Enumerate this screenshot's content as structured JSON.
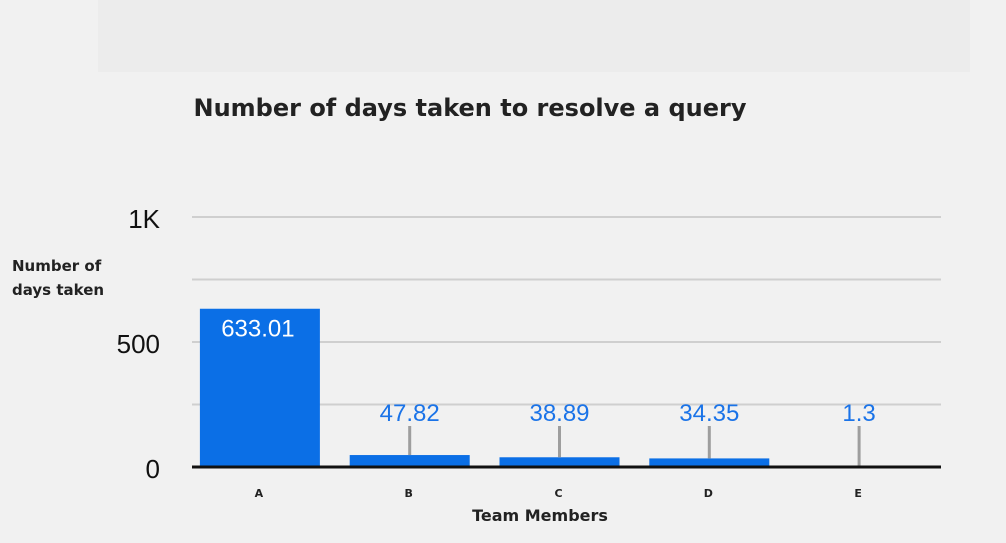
{
  "chart_data": {
    "type": "bar",
    "title": "Number of days taken to resolve a query",
    "xlabel": "Team Members",
    "ylabel": "Number of days taken",
    "categories": [
      "A",
      "B",
      "C",
      "D",
      "E"
    ],
    "values": [
      633.01,
      47.82,
      38.89,
      34.35,
      1.3
    ],
    "data_labels": [
      "633.01",
      "47.82",
      "38.89",
      "34.35",
      "1.3"
    ],
    "ylim": [
      0,
      1000
    ],
    "yticks": [
      0,
      500,
      1000
    ],
    "ytick_labels": [
      "0",
      "500",
      "1K"
    ],
    "grid": true,
    "colors": {
      "bar": "#0b6fe6",
      "label": "#1a73e8",
      "grid": "#cfcfcf",
      "leader": "#9e9e9e"
    }
  }
}
